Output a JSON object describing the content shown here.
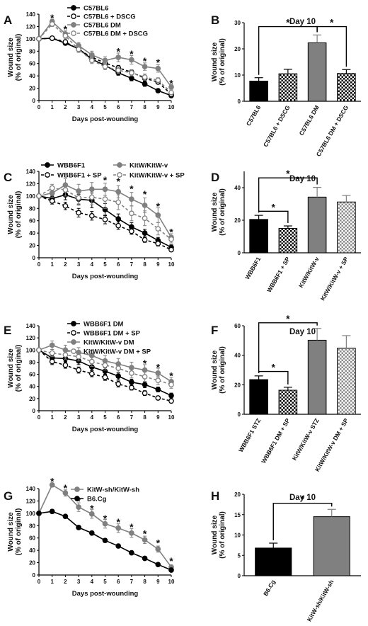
{
  "colors": {
    "black": "#000000",
    "grey": "#808080",
    "light_grey": "#b3b3b3",
    "hatch": "#666666"
  },
  "chart_data": [
    {
      "id": "A",
      "panel_label": "A",
      "type": "line",
      "xlabel": "Days post-wounding",
      "ylabel": [
        "Wound size",
        "(% of original)"
      ],
      "xlim": [
        0,
        10
      ],
      "ylim": [
        0,
        140
      ],
      "xticks": [
        0,
        1,
        2,
        3,
        4,
        5,
        6,
        7,
        8,
        9,
        10
      ],
      "yticks": [
        0,
        20,
        40,
        60,
        80,
        100,
        120,
        140
      ],
      "x": [
        0,
        1,
        2,
        3,
        4,
        5,
        6,
        7,
        8,
        9,
        10
      ],
      "series": [
        {
          "name": "C57BL6",
          "color": "#000000",
          "dashed": false,
          "marker": "filled",
          "values": [
            100,
            101,
            93,
            84,
            67,
            57,
            45,
            36,
            27,
            16,
            8
          ],
          "errors": [
            0,
            2,
            3,
            3,
            4,
            4,
            4,
            4,
            4,
            3,
            2
          ]
        },
        {
          "name": "C57BL6 + DSCG",
          "color": "#000000",
          "dashed": true,
          "marker": "open",
          "values": [
            100,
            101,
            95,
            83,
            70,
            61,
            53,
            46,
            36,
            30,
            10
          ],
          "errors": [
            0,
            2,
            3,
            3,
            4,
            4,
            4,
            4,
            4,
            3,
            2
          ]
        },
        {
          "name": "C57BL6 DM",
          "color": "#808080",
          "dashed": false,
          "marker": "filled",
          "values": [
            100,
            128,
            108,
            89,
            74,
            65,
            70,
            66,
            55,
            52,
            22
          ],
          "errors": [
            0,
            4,
            5,
            5,
            6,
            6,
            7,
            7,
            6,
            6,
            4
          ]
        },
        {
          "name": "C57BL6 DM + DSCG",
          "color": "#808080",
          "dashed": true,
          "marker": "open",
          "values": [
            100,
            124,
            105,
            83,
            65,
            55,
            49,
            45,
            38,
            33,
            13
          ],
          "errors": [
            0,
            4,
            5,
            5,
            5,
            5,
            5,
            5,
            5,
            4,
            3
          ]
        }
      ],
      "annotations": [
        {
          "x": 1,
          "y": 134,
          "text": "*"
        },
        {
          "x": 2,
          "y": 116,
          "text": "*"
        },
        {
          "x": 6,
          "y": 80,
          "text": "*"
        },
        {
          "x": 7,
          "y": 76,
          "text": "*"
        },
        {
          "x": 8,
          "y": 64,
          "text": "*"
        },
        {
          "x": 9,
          "y": 62,
          "text": "*"
        },
        {
          "x": 10,
          "y": 28,
          "text": "*"
        }
      ]
    },
    {
      "id": "B",
      "panel_label": "B",
      "type": "bar",
      "title": "Day 10",
      "ylabel": [
        "Wound size",
        "(% of original)"
      ],
      "ylim": [
        0,
        30
      ],
      "yticks": [
        0,
        10,
        20,
        30
      ],
      "categories": [
        "C57BL6",
        "C57BL6 + DSCG",
        "C57BL6 DM",
        "C57BL6 DM + DSCG"
      ],
      "values": [
        7.7,
        10.5,
        22.3,
        10.6
      ],
      "errors": [
        1.3,
        1.7,
        3.0,
        1.5
      ],
      "fills": [
        "black",
        "check",
        "grey",
        "check"
      ],
      "brackets": [
        {
          "from": 0,
          "to": 2,
          "y": 28.5,
          "text": "*"
        },
        {
          "from": 2,
          "to": 3,
          "y": 28.5,
          "text": "*"
        }
      ]
    },
    {
      "id": "C",
      "panel_label": "C",
      "type": "line",
      "xlabel": "Days post-wounding",
      "ylabel": [
        "Wound size",
        "(% of original)"
      ],
      "xlim": [
        0,
        10
      ],
      "ylim": [
        0,
        140
      ],
      "xticks": [
        0,
        1,
        2,
        3,
        4,
        5,
        6,
        7,
        8,
        9,
        10
      ],
      "yticks": [
        0,
        20,
        40,
        60,
        80,
        100,
        120,
        140
      ],
      "x": [
        0,
        1,
        2,
        3,
        4,
        5,
        6,
        7,
        8,
        9,
        10
      ],
      "series": [
        {
          "name": "WBB6F1",
          "color": "#000000",
          "dashed": false,
          "marker": "filled",
          "values": [
            100,
            96,
            102,
            95,
            93,
            78,
            63,
            50,
            40,
            28,
            17
          ],
          "errors": [
            0,
            5,
            8,
            8,
            12,
            10,
            8,
            7,
            6,
            5,
            4
          ]
        },
        {
          "name": "WBB6F1 + SP",
          "color": "#000000",
          "dashed": true,
          "marker": "open",
          "values": [
            100,
            92,
            84,
            73,
            68,
            62,
            52,
            43,
            29,
            23,
            13
          ],
          "errors": [
            0,
            5,
            6,
            7,
            7,
            7,
            6,
            5,
            4,
            4,
            3
          ]
        },
        {
          "name": "KitW/KitW-v",
          "color": "#808080",
          "dashed": false,
          "marker": "filled",
          "values": [
            100,
            105,
            118,
            108,
            111,
            111,
            107,
            95,
            85,
            69,
            33
          ],
          "errors": [
            0,
            7,
            10,
            11,
            11,
            10,
            10,
            11,
            12,
            12,
            6
          ]
        },
        {
          "name": "KitW/KitW-v + SP",
          "color": "#808080",
          "dashed": true,
          "marker": "open",
          "values": [
            100,
            113,
            110,
            97,
            98,
            95,
            90,
            72,
            64,
            47,
            30
          ],
          "errors": [
            0,
            6,
            10,
            12,
            12,
            15,
            12,
            12,
            12,
            10,
            6
          ]
        }
      ],
      "annotations": [
        {
          "x": 5,
          "y": 126,
          "text": "*"
        },
        {
          "x": 6,
          "y": 124,
          "text": "*"
        },
        {
          "x": 7,
          "y": 112,
          "text": "*"
        },
        {
          "x": 8,
          "y": 103,
          "text": "*"
        },
        {
          "x": 9,
          "y": 84,
          "text": "*"
        },
        {
          "x": 10,
          "y": 42,
          "text": "*"
        }
      ]
    },
    {
      "id": "D",
      "panel_label": "D",
      "type": "bar",
      "title": "Day 10",
      "ylabel": [
        "Wound size",
        "(% of original)"
      ],
      "ylim": [
        0,
        50
      ],
      "yticks": [
        0,
        20,
        40
      ],
      "categories": [
        "WBB6F1",
        "WBB6F1 + SP",
        "KitW/KitW-v",
        "KitW/KitW-v + SP"
      ],
      "values": [
        20.5,
        15,
        34.2,
        31.2
      ],
      "errors": [
        2.5,
        1.5,
        6,
        4
      ],
      "fills": [
        "black",
        "check",
        "grey",
        "lightcheck"
      ],
      "brackets": [
        {
          "from": 0,
          "to": 2,
          "y": 46,
          "text": "*"
        },
        {
          "from": 0,
          "to": 1,
          "y": 25.5,
          "text": "*"
        }
      ]
    },
    {
      "id": "E",
      "panel_label": "E",
      "type": "line",
      "xlabel": "Days post-wounding",
      "ylabel": [
        "Wound size",
        "(% of original)"
      ],
      "xlim": [
        0,
        10
      ],
      "ylim": [
        0,
        140
      ],
      "xticks": [
        0,
        1,
        2,
        3,
        4,
        5,
        6,
        7,
        8,
        9,
        10
      ],
      "yticks": [
        0,
        20,
        40,
        60,
        80,
        100,
        120,
        140
      ],
      "x": [
        0,
        1,
        2,
        3,
        4,
        5,
        6,
        7,
        8,
        9,
        10
      ],
      "series": [
        {
          "name": "WBB6F1 DM",
          "color": "#000000",
          "dashed": false,
          "marker": "filled",
          "values": [
            100,
            87,
            86,
            82,
            72,
            65,
            57,
            47,
            43,
            35,
            25
          ],
          "errors": [
            0,
            5,
            5,
            6,
            6,
            6,
            6,
            5,
            5,
            4,
            4
          ]
        },
        {
          "name": "WBB6F1 DM + SP",
          "color": "#000000",
          "dashed": true,
          "marker": "open",
          "values": [
            100,
            81,
            75,
            67,
            61,
            55,
            44,
            38,
            29,
            21,
            16
          ],
          "errors": [
            0,
            5,
            5,
            5,
            5,
            5,
            5,
            4,
            4,
            3,
            3
          ]
        },
        {
          "name": "KitW/KitW-v DM",
          "color": "#808080",
          "dashed": false,
          "marker": "filled",
          "values": [
            100,
            108,
            100,
            96,
            91,
            82,
            77,
            71,
            67,
            62,
            48
          ],
          "errors": [
            0,
            7,
            8,
            8,
            9,
            9,
            9,
            9,
            9,
            8,
            7
          ]
        },
        {
          "name": "KitW/KitW-v DM + SP",
          "color": "#808080",
          "dashed": true,
          "marker": "open",
          "values": [
            100,
            95,
            92,
            89,
            81,
            75,
            70,
            62,
            56,
            50,
            43
          ],
          "errors": [
            0,
            6,
            7,
            7,
            8,
            8,
            8,
            8,
            8,
            7,
            6
          ]
        }
      ],
      "annotations": [
        {
          "x": 8,
          "y": 78,
          "text": "*"
        },
        {
          "x": 9,
          "y": 72,
          "text": "*"
        },
        {
          "x": 10,
          "y": 58,
          "text": "*"
        }
      ]
    },
    {
      "id": "F",
      "panel_label": "F",
      "type": "bar",
      "title": "Day 10",
      "ylabel": [
        "Wound size",
        "(% of original)"
      ],
      "ylim": [
        0,
        60
      ],
      "yticks": [
        0,
        20,
        40,
        60
      ],
      "categories": [
        "WBB6F1 STZ",
        "WBB6F1 DM + SP",
        "KitW/KitW-v STZ",
        "KitW/KitW-v DM + SP"
      ],
      "values": [
        23.5,
        16.3,
        50.2,
        44.8
      ],
      "errors": [
        2.5,
        2,
        8,
        8.5
      ],
      "fills": [
        "black",
        "check",
        "grey",
        "lightcheck"
      ],
      "brackets": [
        {
          "from": 0,
          "to": 2,
          "y": 62,
          "text": "*"
        },
        {
          "from": 0,
          "to": 1,
          "y": 29,
          "text": "*"
        }
      ]
    },
    {
      "id": "G",
      "panel_label": "G",
      "type": "line",
      "xlabel": "Days post-wounding",
      "ylabel": [
        "Wound size",
        "(% of original)"
      ],
      "xlim": [
        0,
        10
      ],
      "ylim": [
        0,
        140
      ],
      "xticks": [
        0,
        1,
        2,
        3,
        4,
        5,
        6,
        7,
        8,
        9,
        10
      ],
      "yticks": [
        0,
        20,
        40,
        60,
        80,
        100,
        120,
        140
      ],
      "x": [
        0,
        1,
        2,
        3,
        4,
        5,
        6,
        7,
        8,
        9,
        10
      ],
      "series": [
        {
          "name": "KitW-sh/KitW-sh",
          "color": "#808080",
          "dashed": false,
          "marker": "filled",
          "values": [
            100,
            146,
            133,
            110,
            99,
            83,
            76,
            68,
            57,
            42,
            13
          ],
          "errors": [
            0,
            3,
            5,
            7,
            7,
            7,
            7,
            7,
            6,
            5,
            3
          ]
        },
        {
          "name": "B6.Cg",
          "color": "#000000",
          "dashed": false,
          "marker": "filled",
          "values": [
            100,
            103,
            95,
            77,
            68,
            56,
            47,
            36,
            27,
            17,
            8
          ],
          "errors": [
            0,
            3,
            3,
            3,
            3,
            3,
            3,
            3,
            3,
            2,
            2
          ]
        }
      ],
      "annotations": [
        {
          "x": 1,
          "y": 152,
          "text": "*"
        },
        {
          "x": 2,
          "y": 141,
          "text": "*"
        },
        {
          "x": 3,
          "y": 120,
          "text": "*"
        },
        {
          "x": 4,
          "y": 108,
          "text": "*"
        },
        {
          "x": 5,
          "y": 92,
          "text": "*"
        },
        {
          "x": 6,
          "y": 86,
          "text": "*"
        },
        {
          "x": 7,
          "y": 78,
          "text": "*"
        },
        {
          "x": 8,
          "y": 67,
          "text": "*"
        },
        {
          "x": 9,
          "y": 52,
          "text": "*"
        },
        {
          "x": 10,
          "y": 23,
          "text": "*"
        }
      ]
    },
    {
      "id": "H",
      "panel_label": "H",
      "type": "bar",
      "title": "Day 10",
      "ylabel": [
        "Wound size",
        "(% of original)"
      ],
      "ylim": [
        0,
        20
      ],
      "yticks": [
        0,
        5,
        10,
        15,
        20
      ],
      "categories": [
        "B6.Cg",
        "KitW-sh/KitW-sh"
      ],
      "values": [
        6.8,
        14.5
      ],
      "errors": [
        1.2,
        1.8
      ],
      "fills": [
        "black",
        "grey"
      ],
      "brackets": [
        {
          "from": 0,
          "to": 1,
          "y": 17.8,
          "text": "*"
        }
      ]
    }
  ]
}
